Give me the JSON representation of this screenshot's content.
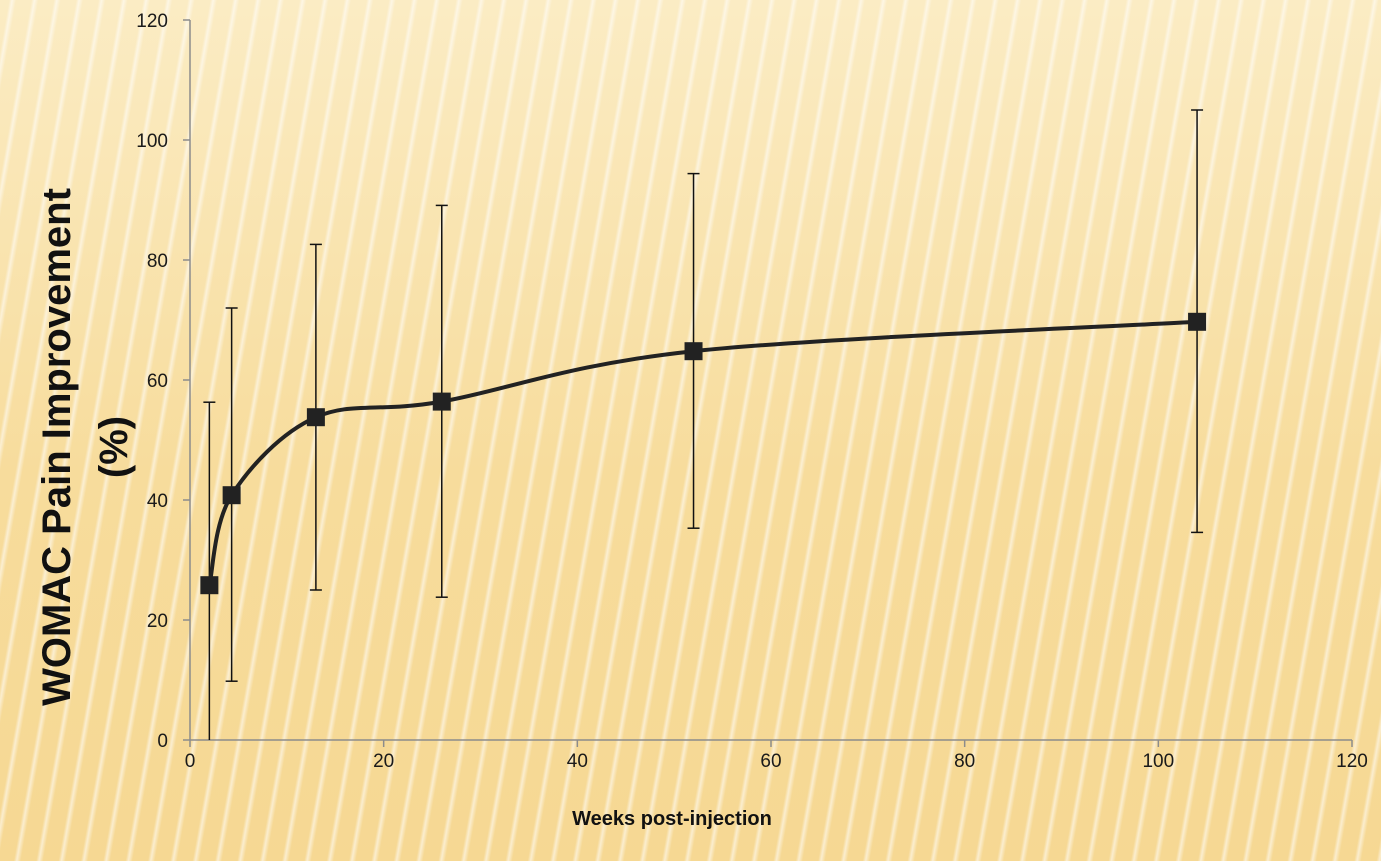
{
  "chart_data": {
    "type": "line",
    "title": "",
    "xlabel": "Weeks post-injection",
    "ylabel_line1": "WOMAC Pain Improvement",
    "ylabel_line2": "(%)",
    "xlim": [
      0,
      120
    ],
    "ylim": [
      0,
      120
    ],
    "xticks": [
      0,
      20,
      40,
      60,
      80,
      100,
      120
    ],
    "yticks": [
      0,
      20,
      40,
      60,
      80,
      100,
      120
    ],
    "grid": false,
    "marker": "square",
    "smoothed": true,
    "line_color": "#222222",
    "axis_color": "#8c8c8c",
    "series": [
      {
        "x": [
          2,
          4.3,
          13,
          26,
          52,
          104
        ],
        "y": [
          25.8,
          40.8,
          53.8,
          56.4,
          64.8,
          69.7
        ],
        "error_upper": [
          56.3,
          72.0,
          82.6,
          89.1,
          94.4,
          105.0
        ],
        "error_lower": [
          0,
          9.8,
          25.0,
          23.8,
          35.3,
          34.6
        ]
      }
    ]
  }
}
